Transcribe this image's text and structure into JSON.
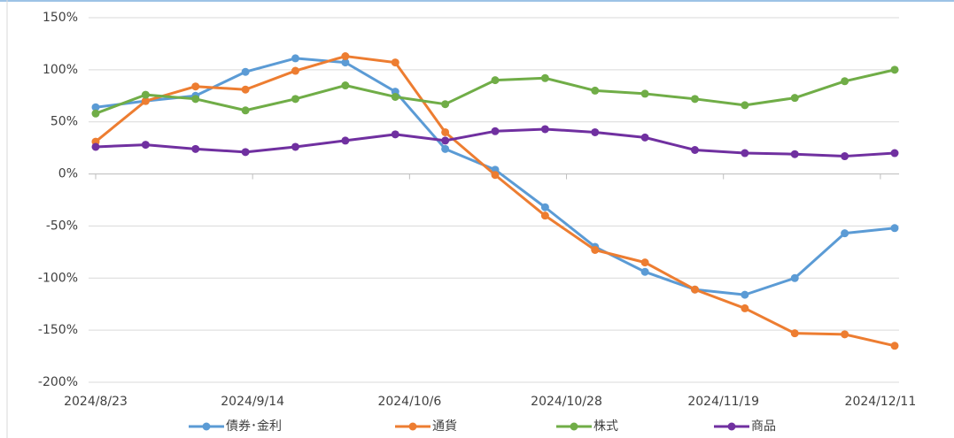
{
  "chart_data": {
    "type": "line",
    "x": [
      "2024/8/23",
      "2024/8/30",
      "2024/9/6",
      "2024/9/13",
      "2024/9/20",
      "2024/9/27",
      "2024/10/4",
      "2024/10/11",
      "2024/10/18",
      "2024/10/25",
      "2024/11/1",
      "2024/11/8",
      "2024/11/15",
      "2024/11/22",
      "2024/11/29",
      "2024/12/6",
      "2024/12/13"
    ],
    "series": [
      {
        "name": "債券･金利",
        "color": "#5b9bd5",
        "values": [
          64,
          70,
          75,
          98,
          111,
          107,
          79,
          24,
          4,
          -32,
          -70,
          -94,
          -111,
          -116,
          -100,
          -57,
          -52
        ]
      },
      {
        "name": "通貨",
        "color": "#ed7d31",
        "values": [
          31,
          70,
          84,
          81,
          99,
          113,
          107,
          40,
          -1,
          -40,
          -73,
          -85,
          -111,
          -129,
          -153,
          -154,
          -165
        ]
      },
      {
        "name": "株式",
        "color": "#70ad47",
        "values": [
          58,
          76,
          72,
          61,
          72,
          85,
          74,
          67,
          90,
          92,
          80,
          77,
          72,
          66,
          73,
          89,
          100
        ]
      },
      {
        "name": "商品",
        "color": "#7030a0",
        "values": [
          26,
          28,
          24,
          21,
          26,
          32,
          38,
          32,
          41,
          43,
          40,
          35,
          23,
          20,
          19,
          17,
          20
        ]
      }
    ],
    "xlim": [
      "2024/8/23",
      "2024/12/13"
    ],
    "xticks": [
      "2024/8/23",
      "2024/9/14",
      "2024/10/6",
      "2024/10/28",
      "2024/11/19",
      "2024/12/11"
    ],
    "ylim": [
      -200,
      150
    ],
    "yticks": [
      {
        "value": -200,
        "label": "-200%"
      },
      {
        "value": -150,
        "label": "-150%"
      },
      {
        "value": -100,
        "label": "-100%"
      },
      {
        "value": -50,
        "label": "-50%"
      },
      {
        "value": 0,
        "label": "0%"
      },
      {
        "value": 50,
        "label": "50%"
      },
      {
        "value": 100,
        "label": "100%"
      },
      {
        "value": 150,
        "label": "150%"
      }
    ],
    "grid": true,
    "legend": "bottom"
  }
}
